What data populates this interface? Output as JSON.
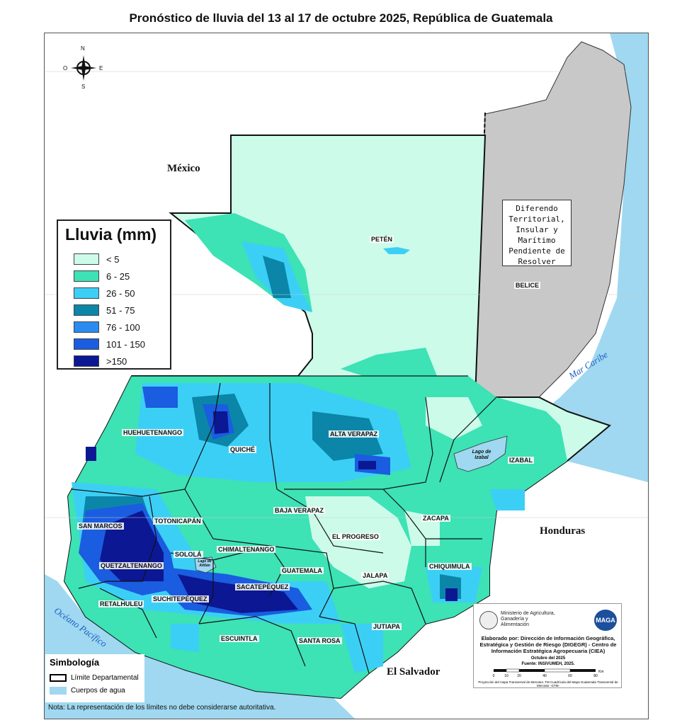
{
  "title": "Pronóstico de lluvia del 13 al 17 de octubre 2025, República de Guatemala",
  "legend": {
    "title": "Lluvia (mm)",
    "classes": [
      {
        "label": "< 5",
        "color": "#ccfbea"
      },
      {
        "label": "6 - 25",
        "color": "#3de2b5"
      },
      {
        "label": "26 - 50",
        "color": "#3ccff5"
      },
      {
        "label": "51 - 75",
        "color": "#0b86a8"
      },
      {
        "label": "76 - 100",
        "color": "#2a8cf0"
      },
      {
        "label": "101 - 150",
        "color": "#1a5de0"
      },
      {
        "label": ">150",
        "color": "#0c1793"
      }
    ]
  },
  "compass": {
    "n": "N",
    "s": "S",
    "e": "E",
    "o": "O"
  },
  "countries": {
    "mexico": "México",
    "honduras": "Honduras",
    "el_salvador": "El Salvador"
  },
  "water_labels": {
    "mar_caribe": "Mar Caribe",
    "oceano_pacifico": "Océano Pacífico",
    "lago_izabal": "Lago de Izabal",
    "lago_atitlan": "Lago de Atitlán"
  },
  "diferendo": "Diferendo Territorial, Insular y Marítimo Pendiente de Resolver",
  "belice": "BELICE",
  "departments": [
    "PETÉN",
    "HUEHUETENANGO",
    "QUICHÉ",
    "ALTA VERAPAZ",
    "IZABAL",
    "SAN MARCOS",
    "TOTONICAPÁN",
    "BAJA VERAPAZ",
    "EL PROGRESO",
    "ZACAPA",
    "SOLOLÁ",
    "CHIMALTENANGO",
    "QUETZALTENANGO",
    "GUATEMALA",
    "JALAPA",
    "CHIQUIMULA",
    "SACATEPÉQUEZ",
    "RETALHULEU",
    "SUCHITEPÉQUEZ",
    "JUTIAPA",
    "ESCUINTLA",
    "SANTA ROSA"
  ],
  "symbology": {
    "title": "Simbología",
    "limite": "Límite Departamental",
    "cuerpos": "Cuerpos de agua",
    "limite_color": "#000000",
    "agua_color": "#9fd8f0"
  },
  "nota": "Nota: La representación de los límites no debe considerarse autoritativa.",
  "credits": {
    "ministry": "Ministerio de Agricultura, Ganadería y Alimentación",
    "logo": "MAGA",
    "elaborado": "Elaborado por: Dirección de Información Geográfica, Estratégica y Gestión de Riesgo (DIGEGR) - Centro de Información Estratégica Agropecuaria (CIEA)",
    "fecha": "Octubre del 2025",
    "fuente": "Fuente: INSIVUMEH, 2025.",
    "scale_ticks": [
      "0",
      "10",
      "20",
      "40",
      "60",
      "80"
    ],
    "scale_unit": "Km",
    "proyeccion": "Proyección del mapa Transversal de Mercator. TM Cuadrícula del Mapa Guatemala Transversal de Mercator -GTM-"
  }
}
